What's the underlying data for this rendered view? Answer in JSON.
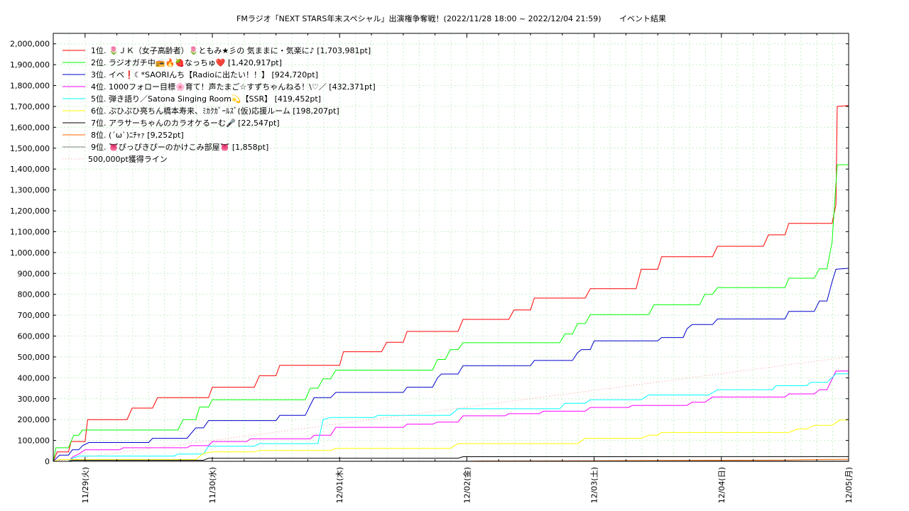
{
  "chart_data": {
    "type": "line",
    "title": "FMラジオ「NEXT STARS年末スペシャル」出演権争奪戦！(2022/11/28 18:00 ~ 2022/12/04 21:59)",
    "subtitle": "イベント結果",
    "xlabel": "",
    "ylabel": "",
    "x_ticks": [
      "11/29(火)",
      "11/30(水)",
      "12/01(木)",
      "12/02(金)",
      "12/03(土)",
      "12/04(日)",
      "12/05(月)"
    ],
    "x_range_days": [
      -0.25,
      6.0
    ],
    "ylim": [
      0,
      2050000
    ],
    "y_ticks": [
      0,
      100000,
      200000,
      300000,
      400000,
      500000,
      600000,
      700000,
      800000,
      900000,
      1000000,
      1100000,
      1200000,
      1300000,
      1400000,
      1500000,
      1600000,
      1700000,
      1800000,
      1900000,
      2000000
    ],
    "y_tick_labels": [
      "0",
      "100,000",
      "200,000",
      "300,000",
      "400,000",
      "500,000",
      "600,000",
      "700,000",
      "800,000",
      "900,000",
      "1,000,000",
      "1,100,000",
      "1,200,000",
      "1,300,000",
      "1,400,000",
      "1,500,000",
      "1,600,000",
      "1,700,000",
      "1,800,000",
      "1,900,000",
      "2,000,000"
    ],
    "grid": true,
    "legend_position": "top-left",
    "series": [
      {
        "name": "1位. 🌷ＪＫ（女子高齢者）🌷ともみ★彡の 気ままに・気楽に♪ [1,703,981pt]",
        "color": "#ff0000",
        "points": [
          [
            -0.25,
            0
          ],
          [
            -0.22,
            45000
          ],
          [
            -0.13,
            45000
          ],
          [
            -0.11,
            95000
          ],
          [
            0.0,
            95000
          ],
          [
            0.02,
            200000
          ],
          [
            0.33,
            200000
          ],
          [
            0.37,
            255000
          ],
          [
            0.53,
            255000
          ],
          [
            0.57,
            305000
          ],
          [
            0.97,
            305000
          ],
          [
            1.0,
            355000
          ],
          [
            1.33,
            355000
          ],
          [
            1.37,
            410000
          ],
          [
            1.5,
            410000
          ],
          [
            1.53,
            460000
          ],
          [
            2.0,
            460000
          ],
          [
            2.03,
            525000
          ],
          [
            2.33,
            525000
          ],
          [
            2.37,
            570000
          ],
          [
            2.5,
            570000
          ],
          [
            2.53,
            622000
          ],
          [
            2.93,
            622000
          ],
          [
            2.97,
            680000
          ],
          [
            3.33,
            680000
          ],
          [
            3.37,
            725000
          ],
          [
            3.5,
            725000
          ],
          [
            3.53,
            782000
          ],
          [
            3.93,
            782000
          ],
          [
            3.97,
            827000
          ],
          [
            4.33,
            827000
          ],
          [
            4.37,
            920000
          ],
          [
            4.5,
            920000
          ],
          [
            4.53,
            980000
          ],
          [
            4.93,
            980000
          ],
          [
            4.97,
            1030000
          ],
          [
            5.33,
            1030000
          ],
          [
            5.37,
            1085000
          ],
          [
            5.5,
            1085000
          ],
          [
            5.53,
            1140000
          ],
          [
            5.87,
            1140000
          ],
          [
            5.9,
            1230000
          ],
          [
            5.91,
            1700000
          ],
          [
            6.0,
            1703981
          ]
        ]
      },
      {
        "name": "2位. ラジオガチ中📻🔥🍓なっちゅ❤️ [1,420,917pt]",
        "color": "#00ff00",
        "points": [
          [
            -0.25,
            0
          ],
          [
            -0.23,
            65000
          ],
          [
            -0.13,
            65000
          ],
          [
            -0.09,
            125000
          ],
          [
            -0.05,
            125000
          ],
          [
            -0.02,
            150000
          ],
          [
            0.73,
            150000
          ],
          [
            0.77,
            200000
          ],
          [
            0.87,
            200000
          ],
          [
            0.9,
            260000
          ],
          [
            0.97,
            260000
          ],
          [
            1.0,
            295000
          ],
          [
            1.73,
            295000
          ],
          [
            1.77,
            350000
          ],
          [
            1.83,
            350000
          ],
          [
            1.87,
            395000
          ],
          [
            1.93,
            395000
          ],
          [
            1.97,
            437000
          ],
          [
            2.73,
            437000
          ],
          [
            2.77,
            488000
          ],
          [
            2.83,
            488000
          ],
          [
            2.87,
            535000
          ],
          [
            2.93,
            535000
          ],
          [
            2.97,
            568000
          ],
          [
            3.73,
            568000
          ],
          [
            3.77,
            610000
          ],
          [
            3.83,
            610000
          ],
          [
            3.87,
            660000
          ],
          [
            3.93,
            660000
          ],
          [
            3.97,
            703000
          ],
          [
            4.43,
            703000
          ],
          [
            4.47,
            750000
          ],
          [
            4.83,
            750000
          ],
          [
            4.87,
            800000
          ],
          [
            4.93,
            800000
          ],
          [
            4.97,
            832000
          ],
          [
            5.5,
            832000
          ],
          [
            5.53,
            877000
          ],
          [
            5.73,
            877000
          ],
          [
            5.77,
            922000
          ],
          [
            5.83,
            922000
          ],
          [
            5.87,
            1050000
          ],
          [
            5.91,
            1420000
          ],
          [
            6.0,
            1420917
          ]
        ]
      },
      {
        "name": "3位. イベ❗☾*SAORIんち【Radioに出たい！！】 [924,720pt]",
        "color": "#0000cc",
        "points": [
          [
            -0.25,
            0
          ],
          [
            -0.2,
            30000
          ],
          [
            -0.13,
            30000
          ],
          [
            -0.1,
            55000
          ],
          [
            -0.05,
            55000
          ],
          [
            -0.02,
            75000
          ],
          [
            0.03,
            90000
          ],
          [
            0.5,
            90000
          ],
          [
            0.53,
            110000
          ],
          [
            0.8,
            110000
          ],
          [
            0.87,
            160000
          ],
          [
            0.93,
            160000
          ],
          [
            0.97,
            195000
          ],
          [
            1.5,
            195000
          ],
          [
            1.53,
            220000
          ],
          [
            1.73,
            220000
          ],
          [
            1.77,
            270000
          ],
          [
            1.8,
            305000
          ],
          [
            1.93,
            305000
          ],
          [
            1.97,
            330000
          ],
          [
            2.5,
            330000
          ],
          [
            2.53,
            355000
          ],
          [
            2.73,
            355000
          ],
          [
            2.77,
            400000
          ],
          [
            2.8,
            418000
          ],
          [
            2.93,
            418000
          ],
          [
            2.97,
            458000
          ],
          [
            3.5,
            458000
          ],
          [
            3.53,
            483000
          ],
          [
            3.83,
            483000
          ],
          [
            3.87,
            520000
          ],
          [
            3.9,
            535000
          ],
          [
            3.97,
            535000
          ],
          [
            4.0,
            577000
          ],
          [
            4.5,
            577000
          ],
          [
            4.53,
            593000
          ],
          [
            4.7,
            593000
          ],
          [
            4.73,
            635000
          ],
          [
            4.77,
            655000
          ],
          [
            4.93,
            655000
          ],
          [
            4.97,
            682000
          ],
          [
            5.5,
            682000
          ],
          [
            5.53,
            718000
          ],
          [
            5.73,
            718000
          ],
          [
            5.77,
            768000
          ],
          [
            5.83,
            768000
          ],
          [
            5.87,
            860000
          ],
          [
            5.9,
            920000
          ],
          [
            6.0,
            924720
          ]
        ]
      },
      {
        "name": "4位. 1000フォロー目標🌸育て！声たまご☆すずちゃんねる！\\♡／ [432,371pt]",
        "color": "#ff00ff",
        "points": [
          [
            -0.25,
            0
          ],
          [
            -0.13,
            0
          ],
          [
            -0.1,
            20000
          ],
          [
            -0.05,
            35000
          ],
          [
            0.0,
            55000
          ],
          [
            0.27,
            55000
          ],
          [
            0.3,
            65000
          ],
          [
            0.8,
            65000
          ],
          [
            0.83,
            75000
          ],
          [
            0.97,
            75000
          ],
          [
            1.0,
            95000
          ],
          [
            1.27,
            95000
          ],
          [
            1.3,
            108000
          ],
          [
            1.77,
            108000
          ],
          [
            1.8,
            125000
          ],
          [
            1.93,
            125000
          ],
          [
            1.97,
            163000
          ],
          [
            2.5,
            163000
          ],
          [
            2.53,
            178000
          ],
          [
            2.73,
            178000
          ],
          [
            2.77,
            188000
          ],
          [
            2.93,
            188000
          ],
          [
            2.97,
            218000
          ],
          [
            3.3,
            218000
          ],
          [
            3.33,
            228000
          ],
          [
            3.57,
            228000
          ],
          [
            3.6,
            240000
          ],
          [
            3.93,
            240000
          ],
          [
            3.97,
            258000
          ],
          [
            4.27,
            258000
          ],
          [
            4.3,
            268000
          ],
          [
            4.73,
            268000
          ],
          [
            4.77,
            283000
          ],
          [
            4.87,
            283000
          ],
          [
            4.93,
            308000
          ],
          [
            5.5,
            308000
          ],
          [
            5.53,
            323000
          ],
          [
            5.73,
            323000
          ],
          [
            5.77,
            343000
          ],
          [
            5.83,
            343000
          ],
          [
            5.9,
            432000
          ],
          [
            6.0,
            432371
          ]
        ]
      },
      {
        "name": "5位. 弾き語り／Satona Singing Room💫【SSR】 [419,452pt]",
        "color": "#00ffff",
        "points": [
          [
            -0.25,
            0
          ],
          [
            -0.13,
            0
          ],
          [
            -0.1,
            15000
          ],
          [
            -0.05,
            25000
          ],
          [
            0.7,
            25000
          ],
          [
            0.73,
            35000
          ],
          [
            0.93,
            35000
          ],
          [
            0.97,
            72000
          ],
          [
            1.33,
            72000
          ],
          [
            1.37,
            85000
          ],
          [
            1.83,
            85000
          ],
          [
            1.87,
            200000
          ],
          [
            1.93,
            210000
          ],
          [
            2.27,
            210000
          ],
          [
            2.3,
            220000
          ],
          [
            2.87,
            220000
          ],
          [
            2.93,
            252000
          ],
          [
            3.73,
            252000
          ],
          [
            3.77,
            278000
          ],
          [
            3.93,
            278000
          ],
          [
            3.97,
            295000
          ],
          [
            4.37,
            295000
          ],
          [
            4.43,
            318000
          ],
          [
            4.9,
            318000
          ],
          [
            4.97,
            343000
          ],
          [
            5.4,
            343000
          ],
          [
            5.43,
            362000
          ],
          [
            5.67,
            362000
          ],
          [
            5.7,
            378000
          ],
          [
            5.83,
            378000
          ],
          [
            5.9,
            419000
          ],
          [
            6.0,
            419452
          ]
        ]
      },
      {
        "name": "6位. ぷひぷひ亮ちん橋本寿来、ﾐｶｸｶﾞｰﾙｽﾞ(仮)応援ルーム [198,207pt]",
        "color": "#ffff00",
        "points": [
          [
            -0.25,
            0
          ],
          [
            -0.2,
            8000
          ],
          [
            0.87,
            8000
          ],
          [
            0.93,
            38000
          ],
          [
            1.0,
            45000
          ],
          [
            1.33,
            45000
          ],
          [
            1.37,
            52000
          ],
          [
            1.93,
            52000
          ],
          [
            1.97,
            62000
          ],
          [
            2.87,
            62000
          ],
          [
            2.93,
            85000
          ],
          [
            3.87,
            85000
          ],
          [
            3.93,
            110000
          ],
          [
            4.37,
            110000
          ],
          [
            4.43,
            125000
          ],
          [
            4.5,
            125000
          ],
          [
            4.53,
            138000
          ],
          [
            5.53,
            138000
          ],
          [
            5.6,
            155000
          ],
          [
            5.67,
            155000
          ],
          [
            5.73,
            172000
          ],
          [
            5.87,
            172000
          ],
          [
            5.93,
            198000
          ],
          [
            6.0,
            198207
          ]
        ]
      },
      {
        "name": "7位. アラサーちゃんのカラオケるーむ🎤 [22,547pt]",
        "color": "#000000",
        "points": [
          [
            -0.25,
            0
          ],
          [
            -0.13,
            0
          ],
          [
            -0.1,
            5000
          ],
          [
            0.93,
            5000
          ],
          [
            0.97,
            15000
          ],
          [
            1.0,
            15000
          ],
          [
            2.93,
            15000
          ],
          [
            2.97,
            22000
          ],
          [
            6.0,
            22547
          ]
        ]
      },
      {
        "name": "8位. (´ω`)ﾆﾁｬｧ [9,252pt]",
        "color": "#ff6600",
        "points": [
          [
            -0.25,
            0
          ],
          [
            3.0,
            0
          ],
          [
            3.1,
            2000
          ],
          [
            4.0,
            3000
          ],
          [
            4.93,
            5000
          ],
          [
            5.5,
            6000
          ],
          [
            5.83,
            9000
          ],
          [
            6.0,
            9252
          ]
        ]
      },
      {
        "name": "9位. 👅ぴっぴきぴーのかけこみ部屋👅 [1,858pt]",
        "color": "#808080",
        "points": [
          [
            -0.25,
            0
          ],
          [
            2.0,
            500
          ],
          [
            4.0,
            1200
          ],
          [
            6.0,
            1858
          ]
        ]
      },
      {
        "name": "500,000pt獲得ライン",
        "color": "#ff9999",
        "dashed": true,
        "points": [
          [
            -0.25,
            0
          ],
          [
            6.0,
            500000
          ]
        ]
      }
    ]
  }
}
